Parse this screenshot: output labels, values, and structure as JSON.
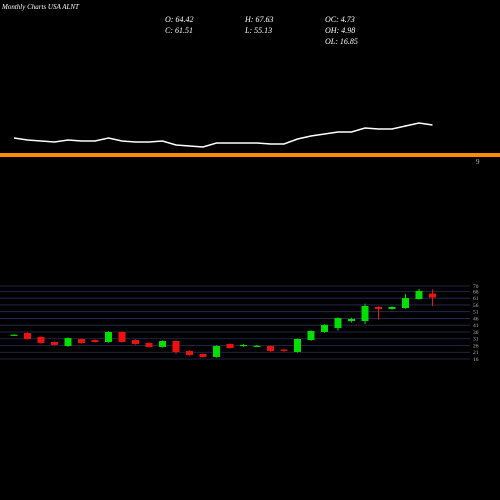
{
  "chart_data": {
    "type": "candlestick",
    "title": "Monthly Charts USA ALNT",
    "stats": [
      "O: 64.42",
      "H: 67.63",
      "OC: 4.73",
      "C: 61.51",
      "L: 55.13",
      "OH: 4.98",
      "OL: 16.85"
    ],
    "band_label": "9",
    "open": [
      33.5,
      35.2,
      32.3,
      28.6,
      25.6,
      30.8,
      30.0,
      28.6,
      36.0,
      30.0,
      27.8,
      24.9,
      29.3,
      21.9,
      19.7,
      17.5,
      27.1,
      25.6,
      25.4,
      25.6,
      23.0,
      21.2,
      30.0,
      36.0,
      38.9,
      44.1,
      44.1,
      54.5,
      53.0,
      53.7,
      60.4,
      64.42
    ],
    "high": [
      34.3,
      35.7,
      32.8,
      29.1,
      32.0,
      31.3,
      30.5,
      36.5,
      36.5,
      30.5,
      28.3,
      29.8,
      29.8,
      22.4,
      20.2,
      26.1,
      27.6,
      27.0,
      26.3,
      26.1,
      23.5,
      31.3,
      37.2,
      41.7,
      46.8,
      46.5,
      57.0,
      55.0,
      55.0,
      64.0,
      68.0,
      67.63
    ],
    "low": [
      33.3,
      30.3,
      27.3,
      25.9,
      25.1,
      27.3,
      28.1,
      28.1,
      28.1,
      26.6,
      24.4,
      24.4,
      19.7,
      18.5,
      17.0,
      17.0,
      23.6,
      25.1,
      24.9,
      21.4,
      21.5,
      20.7,
      29.5,
      35.5,
      37.0,
      43.0,
      42.0,
      45.0,
      52.5,
      53.2,
      59.9,
      55.13
    ],
    "close": [
      34.0,
      30.8,
      27.8,
      26.4,
      31.5,
      27.8,
      28.6,
      36.0,
      28.6,
      27.1,
      24.9,
      29.3,
      21.2,
      19.0,
      17.5,
      25.6,
      24.1,
      26.4,
      25.8,
      21.9,
      22.0,
      30.8,
      36.7,
      41.2,
      46.3,
      45.6,
      55.2,
      53.0,
      54.5,
      61.1,
      66.3,
      61.51
    ],
    "ylim": [
      16,
      70
    ],
    "yticks": [
      70,
      66,
      61,
      56,
      51,
      46,
      41,
      36,
      31,
      26,
      21,
      16
    ],
    "line_values": [
      22,
      20,
      19,
      18,
      20,
      19,
      19,
      22,
      19,
      18,
      18,
      19,
      15,
      14,
      13,
      17,
      17,
      17,
      17,
      16,
      16,
      21,
      24,
      26,
      28,
      28,
      32,
      31,
      31,
      34,
      37,
      35
    ],
    "line_ylim": [
      0,
      60
    ],
    "up_color": "#00e000",
    "down_color": "#ee1111",
    "line_color": "#ffffff",
    "band_color": "#ff8c00",
    "grid_color": "#2a2f55"
  }
}
